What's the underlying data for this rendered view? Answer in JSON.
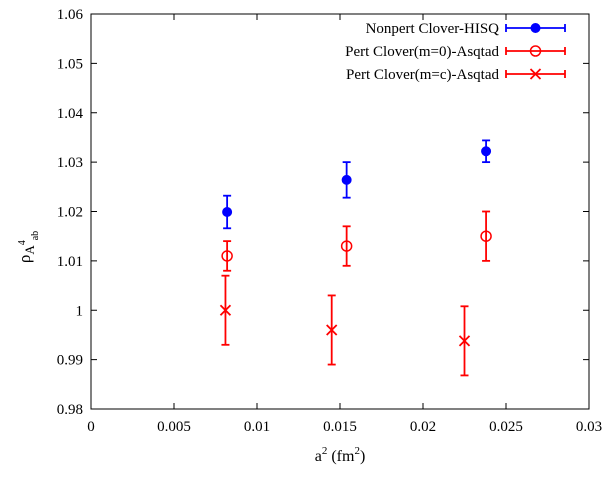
{
  "chart_data": {
    "type": "scatter",
    "xlim": [
      0,
      0.03
    ],
    "ylim": [
      0.98,
      1.06
    ],
    "x_ticks": [
      "0",
      "0.005",
      "0.01",
      "0.015",
      "0.02",
      "0.025",
      "0.03"
    ],
    "x_tick_values": [
      0,
      0.005,
      0.01,
      0.015,
      0.02,
      0.025,
      0.03
    ],
    "y_ticks": [
      "0.98",
      "0.99",
      "1",
      "1.01",
      "1.02",
      "1.03",
      "1.04",
      "1.05",
      "1.06"
    ],
    "y_tick_values": [
      0.98,
      0.99,
      1.0,
      1.01,
      1.02,
      1.03,
      1.04,
      1.05,
      1.06
    ],
    "xlabel": {
      "base": "a",
      "sup1": "2",
      "mid": " (fm",
      "sup2": "2",
      "end": ")"
    },
    "ylabel": {
      "rho": "ρ",
      "A": "A",
      "sup": "4",
      "sub": "ab"
    },
    "grid": false,
    "legend_position": "top-right",
    "series": [
      {
        "name": "Nonpert Clover-HISQ",
        "color": "#0000ff",
        "marker": "filled-circle",
        "points": [
          {
            "x": 0.0082,
            "y": 1.0199,
            "err": 0.0033
          },
          {
            "x": 0.0154,
            "y": 1.0264,
            "err": 0.0036
          },
          {
            "x": 0.0238,
            "y": 1.0322,
            "err": 0.0022
          }
        ]
      },
      {
        "name": "Pert Clover(m=0)-Asqtad",
        "color": "#ff0000",
        "marker": "open-circle",
        "points": [
          {
            "x": 0.0082,
            "y": 1.011,
            "err": 0.003
          },
          {
            "x": 0.0154,
            "y": 1.013,
            "err": 0.004
          },
          {
            "x": 0.0238,
            "y": 1.015,
            "err": 0.005
          }
        ]
      },
      {
        "name": "Pert Clover(m=c)-Asqtad",
        "color": "#ff0000",
        "marker": "cross",
        "points": [
          {
            "x": 0.0081,
            "y": 1.0,
            "err": 0.007
          },
          {
            "x": 0.0145,
            "y": 0.996,
            "err": 0.007
          },
          {
            "x": 0.0225,
            "y": 0.9938,
            "err": 0.007
          }
        ]
      }
    ]
  }
}
